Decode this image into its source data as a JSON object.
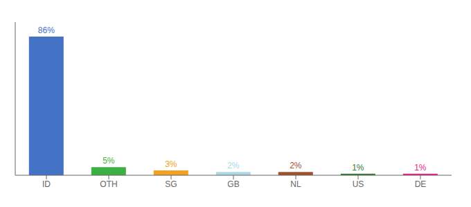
{
  "chart_data": {
    "type": "bar",
    "categories": [
      "ID",
      "OTH",
      "SG",
      "GB",
      "NL",
      "US",
      "DE"
    ],
    "values": [
      86,
      5,
      3,
      2,
      2,
      1,
      1
    ],
    "value_labels": [
      "86%",
      "5%",
      "3%",
      "2%",
      "2%",
      "1%",
      "1%"
    ],
    "data_labels": true,
    "colors": [
      "#4472c4",
      "#3cb043",
      "#f4a020",
      "#add8e6",
      "#a0522d",
      "#2e7d32",
      "#e91e8c"
    ],
    "ylim": [
      0,
      95
    ],
    "tick_labels": "x",
    "grid": false
  }
}
